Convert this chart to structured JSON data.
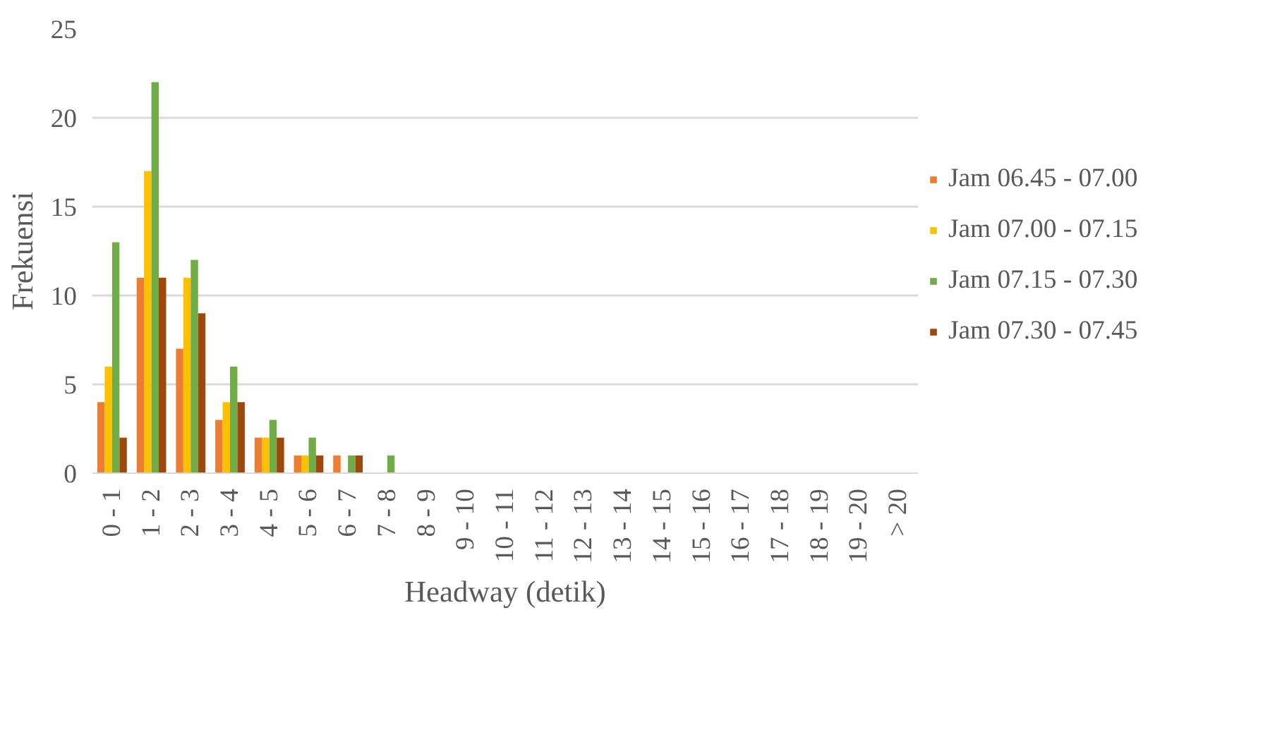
{
  "chart_data": {
    "type": "bar",
    "categories": [
      "0 - 1",
      "1 - 2",
      "2 - 3",
      "3 - 4",
      "4 - 5",
      "5 - 6",
      "6 - 7",
      "7 - 8",
      "8 - 9",
      "9 - 10",
      "10 - 11",
      "11 - 12",
      "12 - 13",
      "13 - 14",
      "14 - 15",
      "15 - 16",
      "16 - 17",
      "17 - 18",
      "18 - 19",
      "19 - 20",
      "> 20"
    ],
    "series": [
      {
        "name": "Jam 06.45 - 07.00",
        "color": "#ed7d31",
        "values": [
          4,
          11,
          7,
          3,
          2,
          1,
          1,
          0,
          0,
          0,
          0,
          0,
          0,
          0,
          0,
          0,
          0,
          0,
          0,
          0,
          0
        ]
      },
      {
        "name": "Jam 07.00 - 07.15",
        "color": "#ffc000",
        "values": [
          6,
          17,
          11,
          4,
          2,
          1,
          0,
          0,
          0,
          0,
          0,
          0,
          0,
          0,
          0,
          0,
          0,
          0,
          0,
          0,
          0
        ]
      },
      {
        "name": "Jam 07.15 - 07.30",
        "color": "#70ad47",
        "values": [
          13,
          22,
          12,
          6,
          3,
          2,
          1,
          1,
          0,
          0,
          0,
          0,
          0,
          0,
          0,
          0,
          0,
          0,
          0,
          0,
          0
        ]
      },
      {
        "name": "Jam 07.30 - 07.45",
        "color": "#9e480e",
        "values": [
          2,
          11,
          9,
          4,
          2,
          1,
          1,
          0,
          0,
          0,
          0,
          0,
          0,
          0,
          0,
          0,
          0,
          0,
          0,
          0,
          0
        ]
      }
    ],
    "xlabel": "Headway (detik)",
    "ylabel": "Frekuensi",
    "ylim": [
      0,
      25
    ],
    "yticks": [
      0,
      5,
      10,
      15,
      20,
      25
    ],
    "grid": "y",
    "legend": "right"
  }
}
